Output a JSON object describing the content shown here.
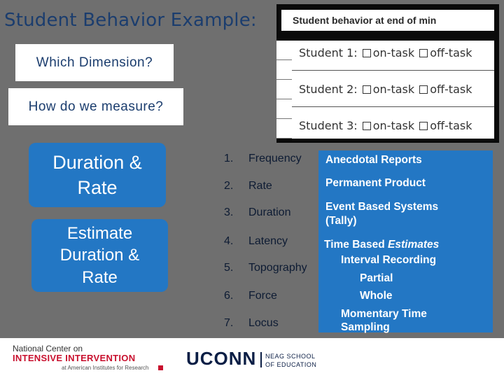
{
  "slide": {
    "title": "Student Behavior Example:",
    "question1": "Which Dimension?",
    "question2": "How do we measure?"
  },
  "behavior_image": {
    "header": "Student behavior at end of min",
    "rows": [
      {
        "student": "Student 1:",
        "opt1": "on-task",
        "opt2": "off-task"
      },
      {
        "student": "Student 2:",
        "opt1": "on-task",
        "opt2": "off-task"
      },
      {
        "student": "Student 3:",
        "opt1": "on-task",
        "opt2": "off-task"
      }
    ]
  },
  "answers": {
    "box1": "Duration & Rate",
    "box2": "Estimate Duration & Rate"
  },
  "dimensions": [
    {
      "num": "1.",
      "label": "Frequency"
    },
    {
      "num": "2.",
      "label": "Rate"
    },
    {
      "num": "3.",
      "label": "Duration"
    },
    {
      "num": "4.",
      "label": "Latency"
    },
    {
      "num": "5.",
      "label": "Topography"
    },
    {
      "num": "6.",
      "label": "Force"
    },
    {
      "num": "7.",
      "label": "Locus"
    }
  ],
  "methods": {
    "anecdotal": "Anecdotal Reports",
    "permanent": "Permanent Product",
    "event1": "Event Based Systems",
    "event2": "(Tally)",
    "time_prefix": "Time Based ",
    "time_italic": "Estimates",
    "interval": "Interval Recording",
    "partial": "Partial",
    "whole": "Whole",
    "momentary1": "Momentary Time",
    "momentary2": "Sampling"
  },
  "footer": {
    "nci_line1": "National Center on",
    "nci_line2": "INTENSIVE INTERVENTION",
    "nci_line3": "at American Institutes for Research",
    "uconn": "UCONN",
    "neag1": "NEAG SCHOOL",
    "neag2": "OF EDUCATION"
  },
  "colors": {
    "accent_blue": "#2377c4",
    "title_blue": "#1b3d6e",
    "background": "#6f6f6f",
    "nci_red": "#c8102e"
  }
}
